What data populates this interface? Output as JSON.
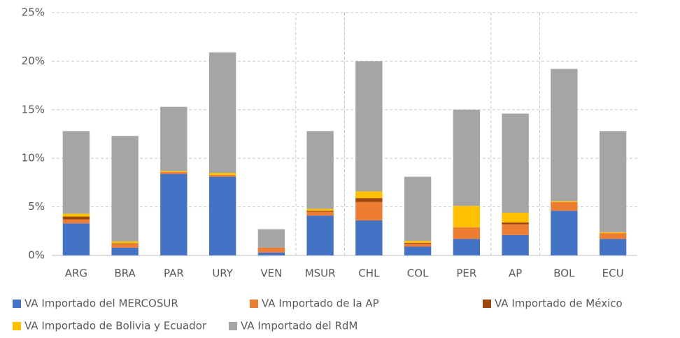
{
  "chart_data": {
    "type": "stacked_bar",
    "categories": [
      "ARG",
      "BRA",
      "PAR",
      "URY",
      "VEN",
      "MSUR",
      "CHL",
      "COL",
      "PER",
      "AP",
      "BOL",
      "ECU"
    ],
    "series": [
      {
        "name": "VA Importado del MERCOSUR",
        "color": "#4472c4",
        "values": [
          3.3,
          0.8,
          8.4,
          8.1,
          0.3,
          4.1,
          3.6,
          0.9,
          1.7,
          2.1,
          4.6,
          1.7
        ]
      },
      {
        "name": "VA Importado de la AP",
        "color": "#ed7d31",
        "values": [
          0.4,
          0.4,
          0.2,
          0.2,
          0.5,
          0.4,
          1.9,
          0.3,
          1.2,
          1.1,
          0.9,
          0.6
        ]
      },
      {
        "name": "VA Importado de México",
        "color": "#9e480e",
        "values": [
          0.3,
          0.05,
          0,
          0,
          0,
          0.1,
          0.4,
          0.1,
          0,
          0.2,
          0,
          0
        ]
      },
      {
        "name": "VA Importado de Bolivia y Ecuador",
        "color": "#ffc000",
        "values": [
          0.3,
          0.2,
          0.1,
          0.2,
          0,
          0.2,
          0.7,
          0.2,
          2.2,
          1.0,
          0.1,
          0.1
        ]
      },
      {
        "name": "VA Importado del RdM",
        "color": "#a5a5a5",
        "values": [
          8.5,
          10.85,
          6.6,
          12.4,
          1.9,
          8.0,
          13.4,
          6.6,
          9.9,
          10.2,
          13.6,
          10.4
        ]
      }
    ],
    "ylim": [
      0,
      25
    ],
    "yticks": [
      {
        "value": 0,
        "label": "0%"
      },
      {
        "value": 5,
        "label": "5%"
      },
      {
        "value": 10,
        "label": "10%"
      },
      {
        "value": 15,
        "label": "15%"
      },
      {
        "value": 20,
        "label": "20%"
      },
      {
        "value": 25,
        "label": "25%"
      }
    ],
    "grid": true
  }
}
